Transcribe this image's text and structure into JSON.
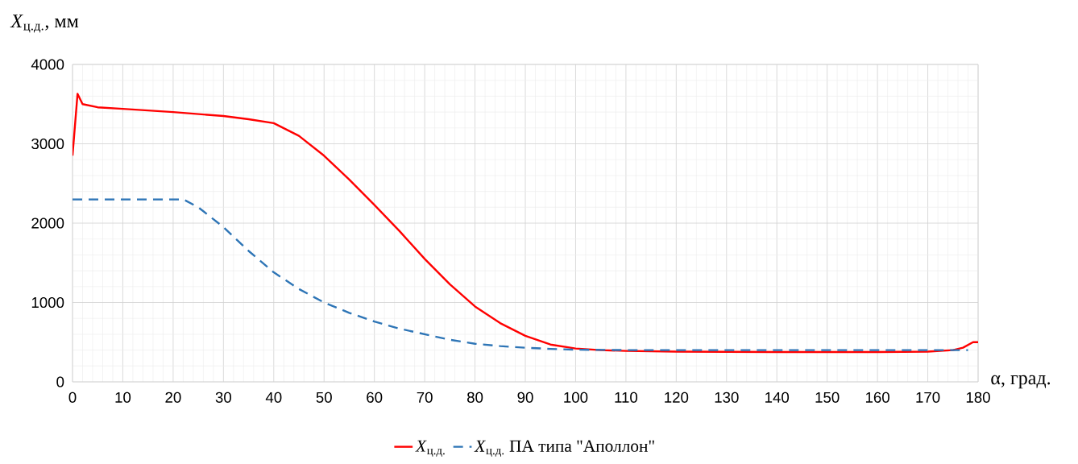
{
  "chart_data": {
    "type": "line",
    "xlabel": "α, град.",
    "ylabel": "*X*$_{ц.д.}$, мм",
    "xlim": [
      0,
      180
    ],
    "ylim": [
      0,
      4000
    ],
    "xticks": [
      0,
      10,
      20,
      30,
      40,
      50,
      60,
      70,
      80,
      90,
      100,
      110,
      120,
      130,
      140,
      150,
      160,
      170,
      180
    ],
    "yticks": [
      0,
      1000,
      2000,
      3000,
      4000
    ],
    "grid": true,
    "legend": "bottom",
    "series": [
      {
        "name": "*X*$_{ц.д.}$",
        "color": "#ff0000",
        "line_style": "solid",
        "x": [
          0,
          1,
          2,
          5,
          10,
          20,
          30,
          35,
          40,
          45,
          50,
          55,
          60,
          65,
          70,
          75,
          80,
          85,
          90,
          95,
          100,
          105,
          110,
          120,
          140,
          160,
          170,
          175,
          177,
          179,
          180
        ],
        "values": [
          2850,
          3630,
          3500,
          3460,
          3440,
          3400,
          3350,
          3310,
          3260,
          3100,
          2850,
          2550,
          2230,
          1900,
          1550,
          1230,
          950,
          740,
          580,
          470,
          420,
          400,
          390,
          380,
          375,
          375,
          380,
          400,
          430,
          500,
          500
        ]
      },
      {
        "name": "*X*$_{ц.д.}$ ПА типа \"Аполлон\"",
        "color": "#2e75b6",
        "line_style": "dashed",
        "x": [
          0,
          10,
          20,
          22,
          25,
          30,
          35,
          40,
          45,
          50,
          55,
          60,
          65,
          70,
          75,
          80,
          85,
          90,
          95,
          100,
          110,
          140,
          178
        ],
        "values": [
          2300,
          2300,
          2300,
          2300,
          2200,
          1950,
          1650,
          1380,
          1170,
          1000,
          870,
          760,
          670,
          600,
          530,
          480,
          450,
          430,
          415,
          405,
          400,
          400,
          400
        ]
      }
    ]
  }
}
